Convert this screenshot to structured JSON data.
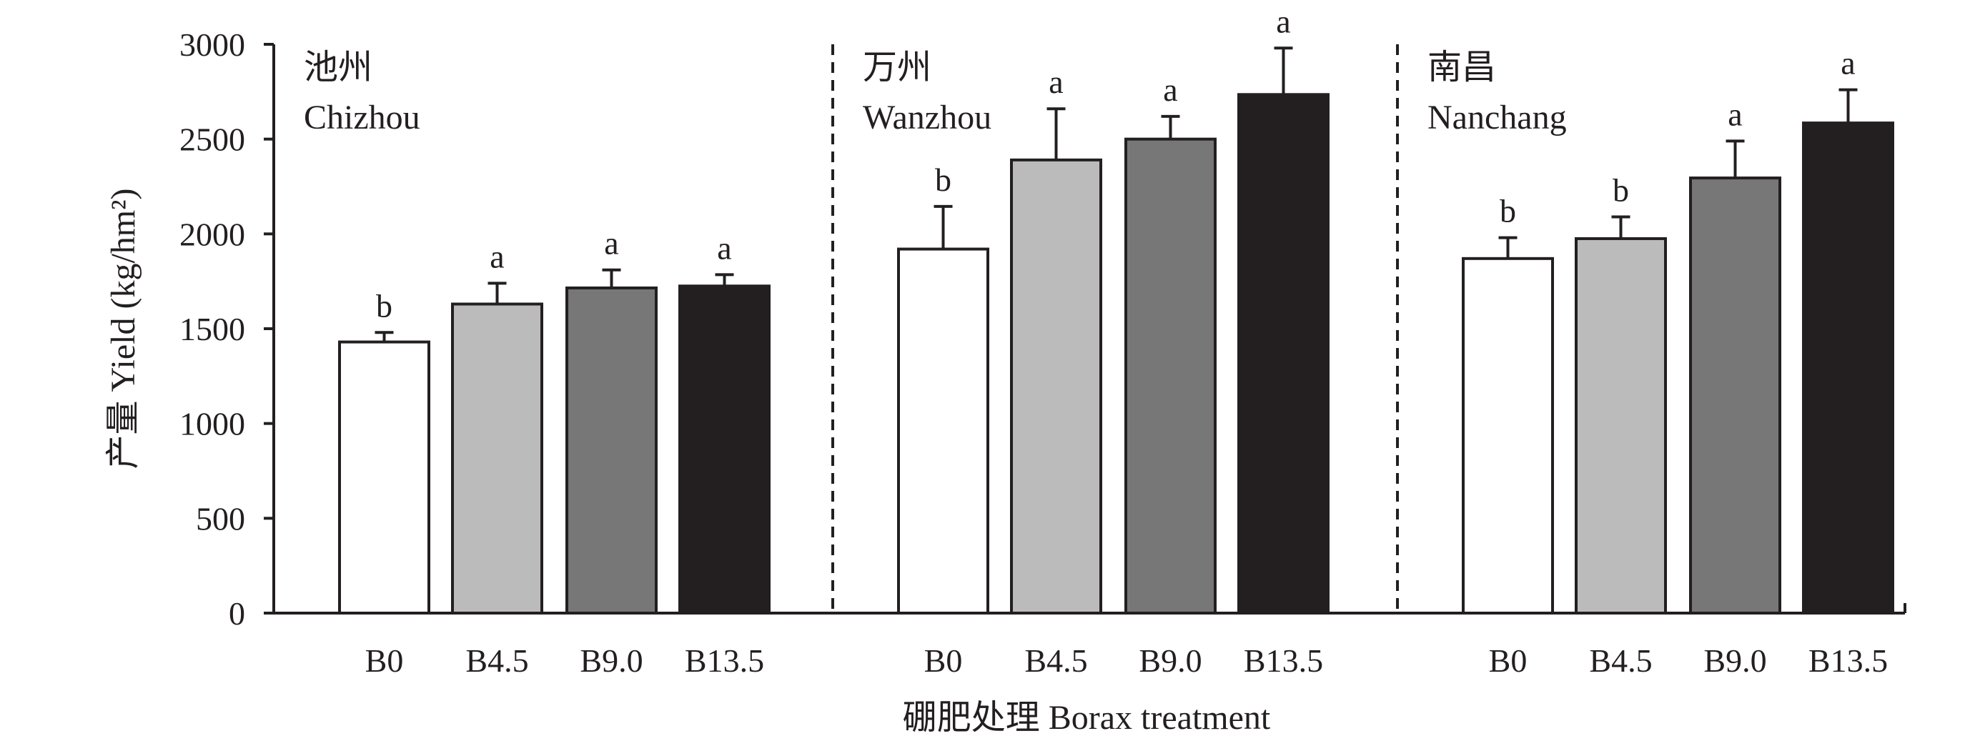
{
  "chart_data": {
    "type": "bar",
    "ylabel": "产量 Yield (kg/hm²)",
    "xlabel": "硼肥处理 Borax treatment",
    "ylim": [
      0,
      3000
    ],
    "yticks": [
      0,
      500,
      1000,
      1500,
      2000,
      2500,
      3000
    ],
    "categories": [
      "B0",
      "B4.5",
      "B9.0",
      "B13.5"
    ],
    "bar_colors": [
      "#ffffff",
      "#bbbbbb",
      "#777777",
      "#231f20"
    ],
    "grid": false,
    "legend": "none",
    "groups": [
      {
        "label_cn": "池州",
        "label_en": "Chizhou",
        "values": [
          1430,
          1630,
          1715,
          1725
        ],
        "errors": [
          50,
          110,
          95,
          60
        ],
        "significance": [
          "b",
          "a",
          "a",
          "a"
        ]
      },
      {
        "label_cn": "万州",
        "label_en": "Wanzhou",
        "values": [
          1920,
          2390,
          2500,
          2735
        ],
        "errors": [
          225,
          270,
          120,
          245
        ],
        "significance": [
          "b",
          "a",
          "a",
          "a"
        ]
      },
      {
        "label_cn": "南昌",
        "label_en": "Nanchang",
        "values": [
          1870,
          1975,
          2295,
          2585
        ],
        "errors": [
          110,
          115,
          195,
          175
        ],
        "significance": [
          "b",
          "b",
          "a",
          "a"
        ]
      }
    ]
  }
}
